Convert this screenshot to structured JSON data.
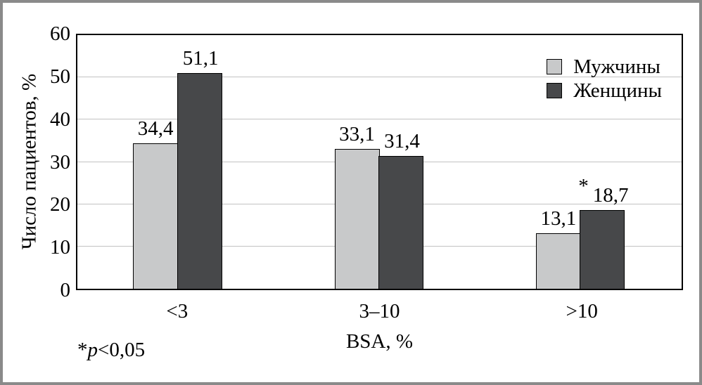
{
  "window": {
    "background": "#ffffff",
    "border_color": "#8a8a8a"
  },
  "chart_data": {
    "type": "bar",
    "title": "",
    "categories": [
      "<3",
      "3–10",
      ">10"
    ],
    "series": [
      {
        "key": "men",
        "name": "Мужчины",
        "color": "#c8c9ca",
        "values": [
          34.4,
          33.1,
          13.1
        ],
        "labels": [
          "34,4",
          "33,1",
          "13,1"
        ],
        "star": [
          false,
          false,
          false
        ]
      },
      {
        "key": "women",
        "name": "Женщины",
        "color": "#47484a",
        "values": [
          51.1,
          31.4,
          18.7
        ],
        "labels": [
          "51,1",
          "31,4",
          "18,7"
        ],
        "star": [
          false,
          false,
          true
        ]
      }
    ],
    "xlabel": "BSA, %",
    "ylabel": "Число пациентов, %",
    "ylim": [
      0,
      60
    ],
    "ytick_step": 10,
    "grid": true,
    "grid_color": "#c2c2c2",
    "legend_position": "top-right",
    "footnote": {
      "star": "*",
      "italic": "p",
      "rest": "<0,05"
    }
  }
}
